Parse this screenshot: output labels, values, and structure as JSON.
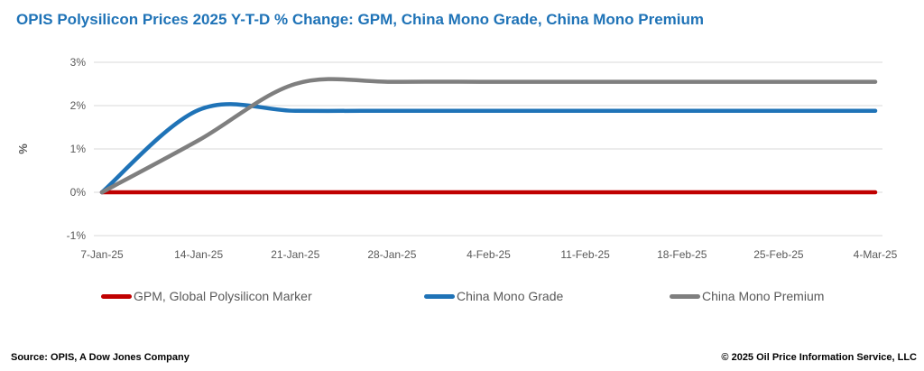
{
  "title": "OPIS Polysilicon Prices 2025 Y-T-D % Change: GPM, China Mono Grade, China Mono Premium",
  "source": "Source: OPIS, A Dow Jones Company",
  "copyright": "© 2025 Oil Price Information Service, LLC",
  "chart_data": {
    "type": "line",
    "title": "OPIS Polysilicon Prices 2025 Y-T-D % Change: GPM, China Mono Grade, China Mono Premium",
    "xlabel": "",
    "ylabel": "%",
    "ylim": [
      -1,
      3
    ],
    "yticks": [
      "-1%",
      "0%",
      "1%",
      "2%",
      "3%"
    ],
    "yticks_values": [
      -1,
      0,
      1,
      2,
      3
    ],
    "categories": [
      "7-Jan-25",
      "14-Jan-25",
      "21-Jan-25",
      "28-Jan-25",
      "4-Feb-25",
      "11-Feb-25",
      "18-Feb-25",
      "25-Feb-25",
      "4-Mar-25"
    ],
    "grid": true,
    "legend_position": "bottom",
    "series": [
      {
        "name": "GPM, Global Polysilicon Marker",
        "color": "#c00000",
        "values": [
          0,
          0,
          0,
          0,
          0,
          0,
          0,
          0,
          0
        ]
      },
      {
        "name": "China Mono Grade",
        "color": "#1f73b7",
        "values": [
          0,
          1.9,
          1.88,
          1.88,
          1.88,
          1.88,
          1.88,
          1.88,
          1.88
        ]
      },
      {
        "name": "China Mono Premium",
        "color": "#7f7f7f",
        "values": [
          0,
          1.2,
          2.5,
          2.55,
          2.55,
          2.55,
          2.55,
          2.55,
          2.55
        ]
      }
    ]
  }
}
